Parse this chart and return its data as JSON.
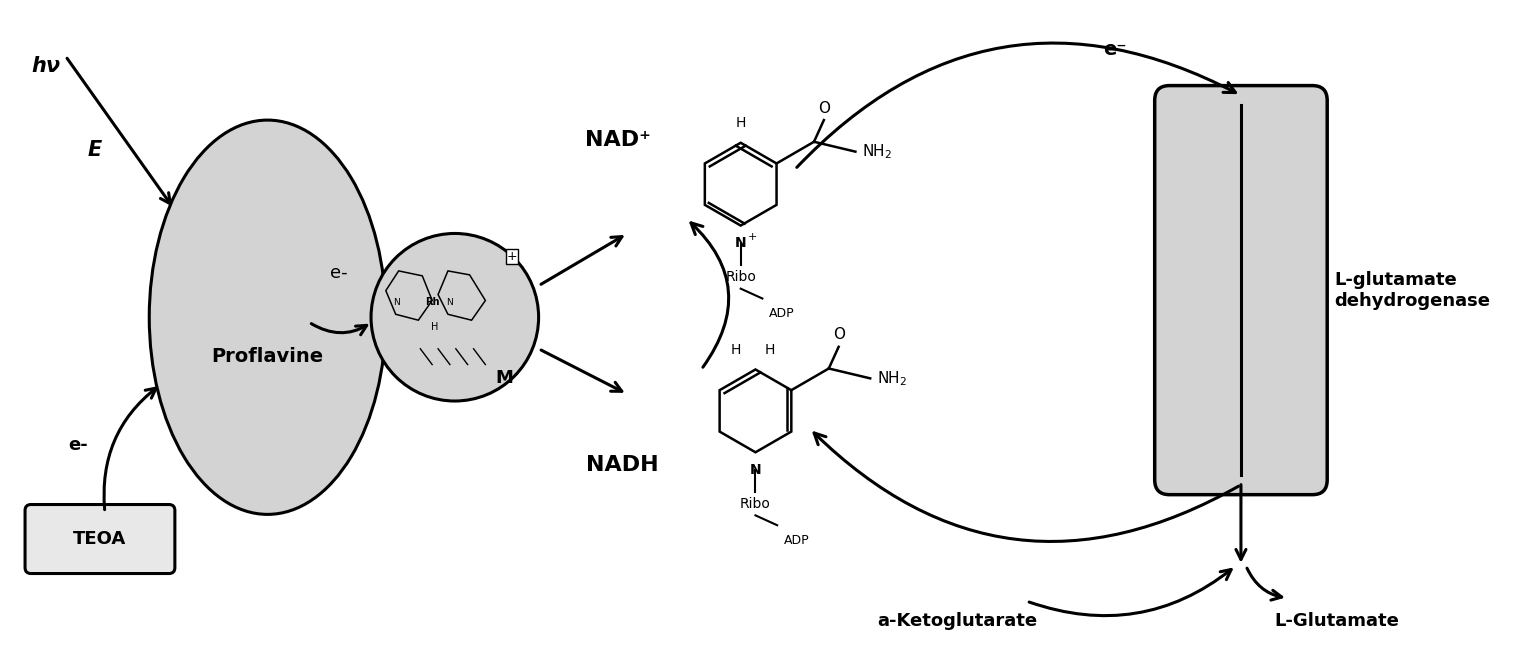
{
  "bg_color": "#ffffff",
  "ellipse_color": "#d3d3d3",
  "circle_color": "#d3d3d3",
  "rect_color": "#d3d3d3",
  "text_color": "#000000",
  "proflavine_label": "Proflavine",
  "M_label": "M",
  "TEOA_label": "TEOA",
  "hv_label": "hν",
  "E_label": "E",
  "eminus_label": "e⁻",
  "NADplus_label": "NAD⁺",
  "NADH_label": "NADH",
  "Ribo_label": "Ribo",
  "ADP_label": "ADP",
  "aKeto_label": "a-Ketoglutarate",
  "LGlut_label": "L-Glutamate",
  "LGlutDH_label": "L-glutamate\ndehydrogenase",
  "figsize": [
    15.25,
    6.67
  ],
  "dpi": 100
}
